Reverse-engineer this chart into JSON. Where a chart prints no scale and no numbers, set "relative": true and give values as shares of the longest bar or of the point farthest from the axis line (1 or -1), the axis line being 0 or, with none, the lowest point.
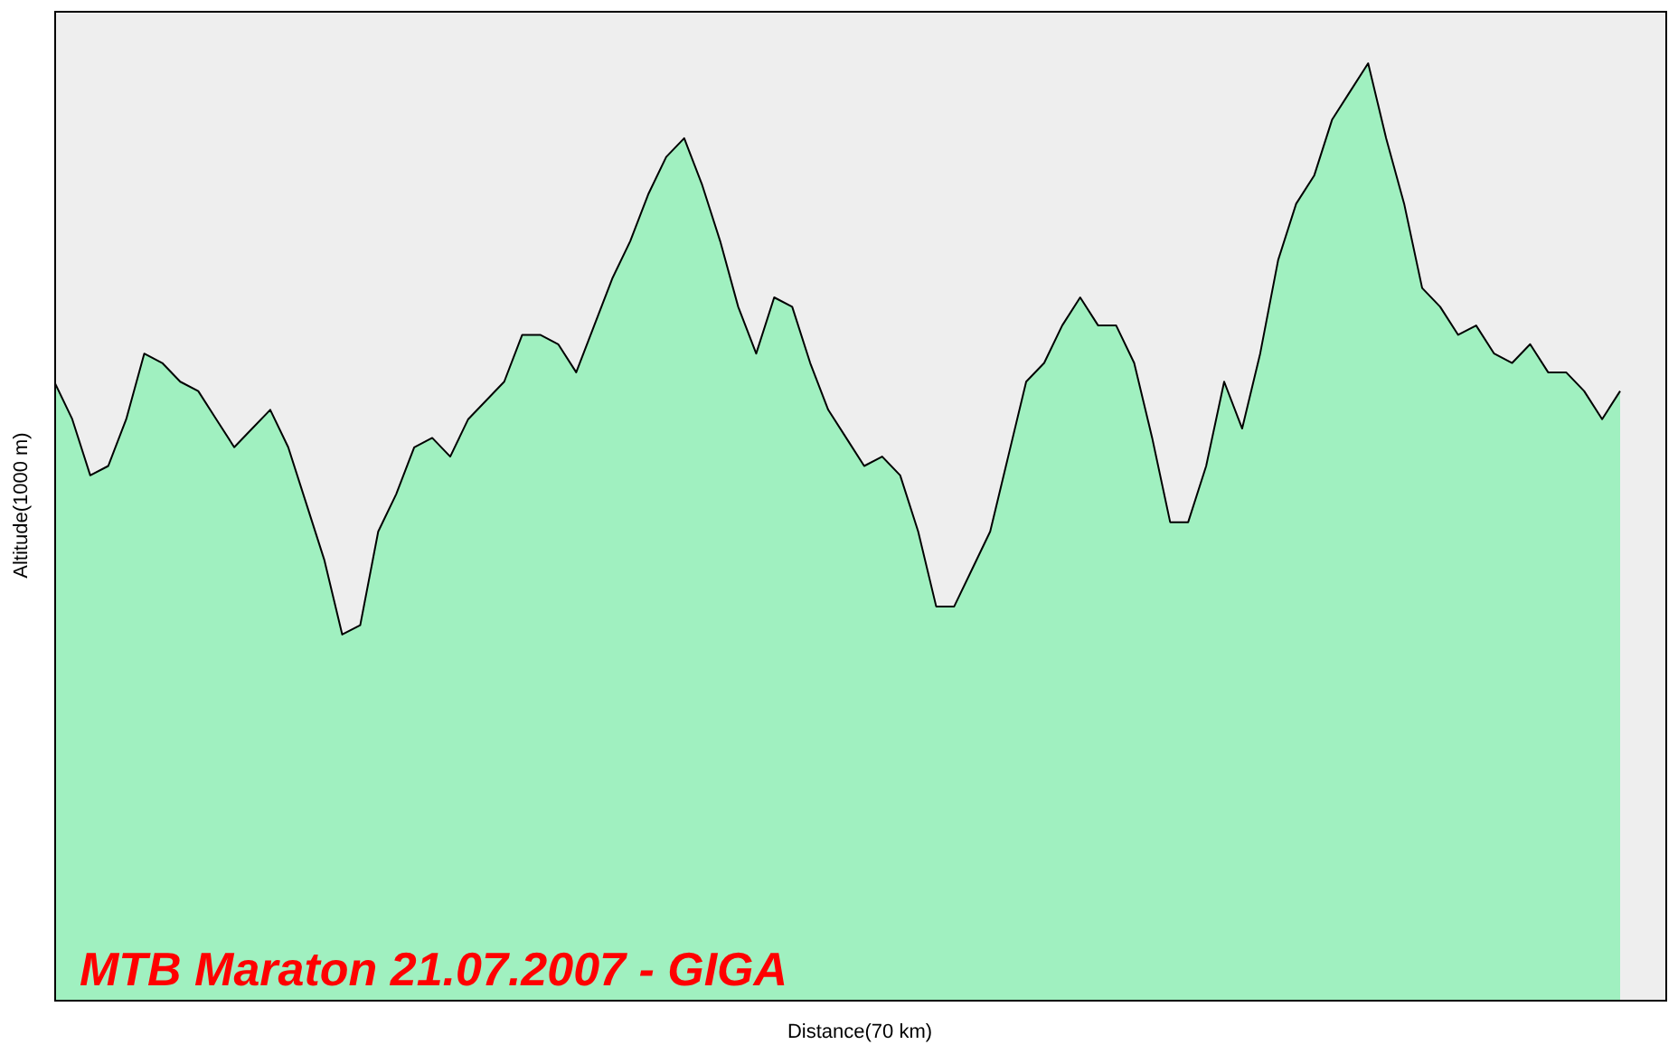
{
  "chart_data": {
    "type": "area",
    "relative": true,
    "xlabel": "Distance(70 km)",
    "ylabel": "Altitude(1000 m)",
    "annotations": [
      "MTB Maraton 21.07.2007 - GIGA"
    ],
    "categories": [
      null,
      null,
      null,
      null,
      null,
      null,
      null,
      null,
      null,
      null,
      null,
      null,
      null,
      null,
      null,
      null,
      null,
      null,
      null,
      null,
      null,
      null,
      null,
      null,
      null,
      null,
      null,
      null,
      null,
      null,
      null,
      null,
      null,
      null,
      null,
      null,
      null,
      null,
      null,
      null,
      null,
      null,
      null,
      null,
      null,
      null,
      null,
      null,
      null,
      null,
      null,
      null,
      null,
      null,
      null,
      null,
      null,
      null,
      null,
      null,
      null,
      null,
      null,
      null,
      null,
      null,
      null,
      null,
      null,
      null,
      null,
      null,
      null,
      null,
      null,
      null,
      null,
      null,
      null,
      null,
      null,
      null,
      null,
      null,
      null,
      null,
      null,
      null
    ],
    "series": [
      {
        "color": "#a0f0c0",
        "values": [
          0.66,
          0.62,
          0.56,
          0.57,
          0.62,
          0.69,
          0.68,
          0.66,
          0.65,
          0.62,
          0.59,
          0.61,
          0.63,
          0.59,
          0.53,
          0.47,
          0.39,
          0.4,
          0.5,
          0.54,
          0.59,
          0.6,
          0.58,
          0.62,
          0.64,
          0.66,
          0.71,
          0.71,
          0.7,
          0.67,
          0.72,
          0.77,
          0.81,
          0.86,
          0.9,
          0.92,
          0.87,
          0.81,
          0.74,
          0.69,
          0.75,
          0.74,
          0.68,
          0.63,
          0.6,
          0.57,
          0.58,
          0.56,
          0.5,
          0.42,
          0.42,
          0.46,
          0.5,
          0.58,
          0.66,
          0.68,
          0.72,
          0.75,
          0.72,
          0.72,
          0.68,
          0.6,
          0.51,
          0.51,
          0.57,
          0.66,
          0.61,
          0.69,
          0.79,
          0.85,
          0.88,
          0.94,
          0.97,
          1,
          0.92,
          0.85,
          0.76,
          0.74,
          0.71,
          0.72,
          0.69,
          0.68,
          0.7,
          0.67,
          0.67,
          0.65,
          0.62,
          0.65
        ]
      }
    ]
  }
}
